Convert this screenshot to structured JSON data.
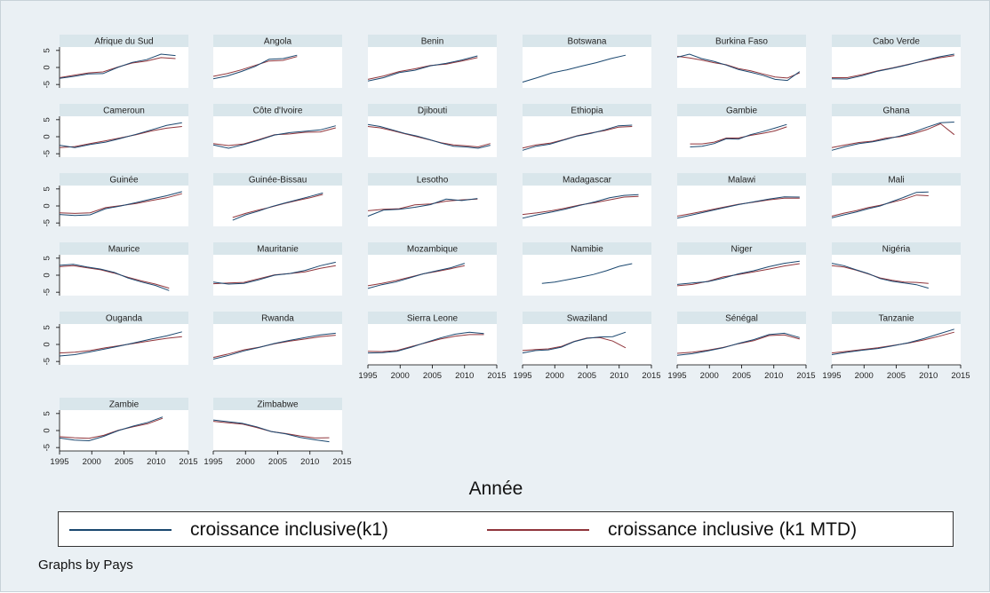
{
  "chart_data": {
    "type": "line",
    "layout": "small-multiples",
    "xlabel": "Année",
    "x_ticks": [
      1995,
      2000,
      2005,
      2010,
      2015
    ],
    "y_ticks": [
      5,
      0,
      -5
    ],
    "xlim": [
      1995,
      2015
    ],
    "ylim": [
      -6,
      6
    ],
    "series_names": [
      "croissance inclusive(k1)",
      "croissance inclusive (k1 MTD)"
    ],
    "series_colors": [
      "#1a476f",
      "#90353b"
    ],
    "panels": [
      {
        "title": "Afrique du Sud",
        "years": [
          1995,
          2013
        ],
        "k1": [
          -3.2,
          -2.6,
          -1.9,
          -1.8,
          0.0,
          1.5,
          2.3,
          3.9,
          3.5
        ],
        "mtd": [
          -3.0,
          -2.3,
          -1.6,
          -1.3,
          0.1,
          1.3,
          1.9,
          2.9,
          2.6
        ]
      },
      {
        "title": "Angola",
        "years": [
          1995,
          2008
        ],
        "k1": [
          -3.3,
          -2.5,
          -1.2,
          0.3,
          2.4,
          2.6,
          3.6
        ],
        "mtd": [
          -2.6,
          -1.8,
          -0.7,
          0.6,
          1.9,
          2.1,
          3.2
        ]
      },
      {
        "title": "Benin",
        "years": [
          1995,
          2012
        ],
        "k1": [
          -4.0,
          -3.0,
          -1.5,
          -0.8,
          0.5,
          1.2,
          2.2,
          3.4
        ],
        "mtd": [
          -3.5,
          -2.5,
          -1.2,
          -0.4,
          0.6,
          1.0,
          1.9,
          2.9
        ]
      },
      {
        "title": "Botswana",
        "years": [
          1995,
          2011
        ],
        "k1": [
          -4.3,
          -3.0,
          -1.6,
          -0.7,
          0.4,
          1.4,
          2.6,
          3.6
        ],
        "mtd": []
      },
      {
        "title": "Burkina Faso",
        "years": [
          1995,
          2014
        ],
        "k1": [
          3.0,
          3.9,
          2.6,
          1.8,
          0.7,
          -0.6,
          -1.4,
          -2.3,
          -3.5,
          -3.8,
          -1.2
        ],
        "mtd": [
          3.3,
          2.8,
          2.2,
          1.4,
          0.8,
          -0.3,
          -1.0,
          -1.9,
          -2.8,
          -3.1,
          -1.6
        ]
      },
      {
        "title": "Cabo Verde",
        "years": [
          1995,
          2014
        ],
        "k1": [
          -3.3,
          -3.4,
          -2.4,
          -1.1,
          -0.2,
          0.8,
          2.0,
          3.1,
          3.9
        ],
        "mtd": [
          -3.0,
          -3.0,
          -2.1,
          -1.0,
          -0.1,
          0.9,
          1.9,
          2.8,
          3.5
        ]
      },
      {
        "title": "Cameroun",
        "years": [
          1995,
          2014
        ],
        "k1": [
          -2.5,
          -3.2,
          -2.3,
          -1.6,
          -0.5,
          0.7,
          2.0,
          3.3,
          4.1
        ],
        "mtd": [
          -3.2,
          -2.9,
          -2.0,
          -1.2,
          -0.3,
          0.6,
          1.7,
          2.5,
          3.0
        ]
      },
      {
        "title": "Côte d'Ivoire",
        "years": [
          1995,
          2014
        ],
        "k1": [
          -2.4,
          -3.4,
          -2.3,
          -1.0,
          0.5,
          1.2,
          1.6,
          2.0,
          3.2
        ],
        "mtd": [
          -2.0,
          -2.6,
          -2.1,
          -0.8,
          0.6,
          0.8,
          1.3,
          1.4,
          2.6
        ]
      },
      {
        "title": "Djibouti",
        "years": [
          1995,
          2014
        ],
        "k1": [
          3.6,
          3.0,
          2.0,
          1.0,
          0.2,
          -0.8,
          -1.9,
          -2.8,
          -3.0,
          -3.4,
          -2.5
        ],
        "mtd": [
          3.0,
          2.6,
          1.8,
          0.9,
          0.0,
          -0.9,
          -1.8,
          -2.4,
          -2.7,
          -3.0,
          -2.0
        ]
      },
      {
        "title": "Ethiopia",
        "years": [
          1995,
          2012
        ],
        "k1": [
          -4.0,
          -2.8,
          -2.2,
          -1.0,
          0.2,
          1.0,
          2.0,
          3.2,
          3.4
        ],
        "mtd": [
          -3.3,
          -2.4,
          -1.9,
          -0.9,
          0.3,
          1.1,
          1.8,
          2.8,
          3.0
        ]
      },
      {
        "title": "Gambie",
        "years": [
          1997,
          2012
        ],
        "k1": [
          -3.0,
          -2.8,
          -2.0,
          -0.6,
          -0.7,
          0.6,
          1.5,
          2.5,
          3.6
        ],
        "mtd": [
          -2.1,
          -2.1,
          -1.6,
          -0.4,
          -0.4,
          0.4,
          1.0,
          1.7,
          2.9
        ]
      },
      {
        "title": "Ghana",
        "years": [
          1995,
          2014
        ],
        "k1": [
          -4.0,
          -2.9,
          -2.0,
          -1.5,
          -0.7,
          0.2,
          1.3,
          2.8,
          4.1,
          4.3
        ],
        "mtd": [
          -3.2,
          -2.4,
          -1.7,
          -1.3,
          -0.4,
          0.0,
          0.9,
          2.1,
          3.8,
          0.6
        ]
      },
      {
        "title": "Guinée",
        "years": [
          1995,
          2014
        ],
        "k1": [
          -2.5,
          -2.8,
          -2.6,
          -0.8,
          0.0,
          1.0,
          2.0,
          3.0,
          4.2
        ],
        "mtd": [
          -2.0,
          -2.2,
          -2.0,
          -0.5,
          0.1,
          0.7,
          1.6,
          2.4,
          3.6
        ]
      },
      {
        "title": "Guinée-Bissau",
        "years": [
          1998,
          2012
        ],
        "k1": [
          -4.2,
          -2.6,
          -1.5,
          -0.2,
          0.8,
          1.8,
          2.8,
          3.8
        ],
        "mtd": [
          -3.4,
          -2.2,
          -1.2,
          -0.3,
          0.7,
          1.6,
          2.4,
          3.4
        ]
      },
      {
        "title": "Lesotho",
        "years": [
          1995,
          2012
        ],
        "k1": [
          -3.0,
          -1.2,
          -1.0,
          -0.4,
          0.4,
          2.0,
          1.6,
          2.2
        ],
        "mtd": [
          -1.4,
          -1.0,
          -0.8,
          0.3,
          0.6,
          1.4,
          1.8,
          2.0
        ]
      },
      {
        "title": "Madagascar",
        "years": [
          1995,
          2013
        ],
        "k1": [
          -3.6,
          -2.6,
          -1.8,
          -0.9,
          0.2,
          1.2,
          2.4,
          3.1,
          3.3
        ],
        "mtd": [
          -2.5,
          -2.0,
          -1.4,
          -0.6,
          0.3,
          1.0,
          1.8,
          2.6,
          2.8
        ]
      },
      {
        "title": "Malawi",
        "years": [
          1995,
          2014
        ],
        "k1": [
          -3.6,
          -2.6,
          -1.6,
          -0.6,
          0.4,
          1.2,
          2.0,
          2.7,
          2.6
        ],
        "mtd": [
          -3.0,
          -2.2,
          -1.3,
          -0.4,
          0.5,
          1.1,
          1.8,
          2.3,
          2.3
        ]
      },
      {
        "title": "Mali",
        "years": [
          1995,
          2010
        ],
        "k1": [
          -3.5,
          -2.6,
          -1.8,
          -0.8,
          0.0,
          1.3,
          2.6,
          4.0,
          4.1
        ],
        "mtd": [
          -3.0,
          -2.1,
          -1.4,
          -0.5,
          0.2,
          1.1,
          2.0,
          3.2,
          3.0
        ]
      },
      {
        "title": "Maurice",
        "years": [
          1995,
          2012
        ],
        "k1": [
          2.9,
          3.2,
          2.4,
          1.8,
          0.8,
          -0.8,
          -2.0,
          -3.0,
          -4.5
        ],
        "mtd": [
          2.5,
          2.8,
          2.2,
          1.6,
          0.6,
          -0.6,
          -1.7,
          -2.6,
          -3.8
        ]
      },
      {
        "title": "Mauritanie",
        "years": [
          1995,
          2014
        ],
        "k1": [
          -2.0,
          -2.6,
          -2.4,
          -1.3,
          0.0,
          0.5,
          1.4,
          2.8,
          3.8
        ],
        "mtd": [
          -2.5,
          -2.3,
          -2.1,
          -1.0,
          0.1,
          0.5,
          1.0,
          2.0,
          2.8
        ]
      },
      {
        "title": "Mozambique",
        "years": [
          1995,
          2010
        ],
        "k1": [
          -3.9,
          -2.8,
          -2.0,
          -0.8,
          0.4,
          1.3,
          2.2,
          3.5
        ],
        "mtd": [
          -3.1,
          -2.4,
          -1.6,
          -0.6,
          0.4,
          1.1,
          1.9,
          2.8
        ]
      },
      {
        "title": "Namibie",
        "years": [
          1998,
          2012
        ],
        "k1": [
          -2.4,
          -2.0,
          -1.3,
          -0.6,
          0.2,
          1.3,
          2.6,
          3.4
        ],
        "mtd": []
      },
      {
        "title": "Niger",
        "years": [
          1995,
          2014
        ],
        "k1": [
          -2.7,
          -2.3,
          -1.9,
          -0.9,
          0.4,
          1.3,
          2.5,
          3.5,
          4.1
        ],
        "mtd": [
          -3.1,
          -2.7,
          -1.8,
          -0.5,
          0.2,
          1.0,
          1.8,
          2.7,
          3.4
        ]
      },
      {
        "title": "Nigéria",
        "years": [
          1995,
          2010
        ],
        "k1": [
          3.5,
          2.8,
          1.6,
          0.5,
          -1.0,
          -1.8,
          -2.3,
          -2.8,
          -3.8
        ],
        "mtd": [
          2.8,
          2.4,
          1.5,
          0.4,
          -0.8,
          -1.5,
          -2.0,
          -2.1,
          -2.4
        ]
      },
      {
        "title": "Ouganda",
        "years": [
          1995,
          2014
        ],
        "k1": [
          -3.4,
          -3.0,
          -2.2,
          -1.3,
          -0.4,
          0.6,
          1.6,
          2.5,
          3.7
        ],
        "mtd": [
          -2.5,
          -2.3,
          -1.8,
          -1.0,
          -0.3,
          0.4,
          1.1,
          1.8,
          2.3
        ]
      },
      {
        "title": "Rwanda",
        "years": [
          1995,
          2014
        ],
        "k1": [
          -4.3,
          -3.2,
          -1.9,
          -0.9,
          0.3,
          1.2,
          2.0,
          2.8,
          3.3
        ],
        "mtd": [
          -3.8,
          -2.8,
          -1.6,
          -0.8,
          0.2,
          1.0,
          1.6,
          2.3,
          2.7
        ]
      },
      {
        "title": "Sierra Leone",
        "years": [
          1995,
          2013
        ],
        "k1": [
          -2.5,
          -2.4,
          -2.0,
          -0.8,
          0.6,
          1.9,
          3.0,
          3.6,
          3.2
        ],
        "mtd": [
          -2.0,
          -2.1,
          -1.8,
          -0.6,
          0.5,
          1.6,
          2.4,
          2.9,
          2.9
        ]
      },
      {
        "title": "Swaziland",
        "years": [
          1995,
          2011
        ],
        "k1": [
          -2.5,
          -1.8,
          -1.6,
          -0.8,
          0.8,
          1.8,
          2.2,
          2.3,
          3.6
        ],
        "mtd": [
          -1.8,
          -1.5,
          -1.3,
          -0.6,
          0.9,
          1.9,
          2.0,
          1.0,
          -1.0
        ]
      },
      {
        "title": "Sénégal",
        "years": [
          1995,
          2014
        ],
        "k1": [
          -3.2,
          -2.7,
          -1.9,
          -1.0,
          0.3,
          1.4,
          2.9,
          3.3,
          2.0
        ],
        "mtd": [
          -2.6,
          -2.3,
          -1.7,
          -0.9,
          0.2,
          1.1,
          2.6,
          2.8,
          1.6
        ]
      },
      {
        "title": "Tanzanie",
        "years": [
          1995,
          2014
        ],
        "k1": [
          -3.0,
          -2.3,
          -1.7,
          -1.2,
          -0.4,
          0.5,
          1.7,
          3.1,
          4.5
        ],
        "mtd": [
          -2.5,
          -2.0,
          -1.5,
          -1.0,
          -0.3,
          0.4,
          1.3,
          2.4,
          3.6
        ]
      },
      {
        "title": "Zambie",
        "years": [
          1995,
          2011
        ],
        "k1": [
          -2.2,
          -2.8,
          -3.0,
          -1.7,
          0.0,
          1.3,
          2.4,
          4.0
        ],
        "mtd": [
          -1.8,
          -2.1,
          -2.3,
          -1.4,
          0.1,
          1.1,
          2.0,
          3.6
        ]
      },
      {
        "title": "Zimbabwe",
        "years": [
          1995,
          2013
        ],
        "k1": [
          3.1,
          2.6,
          2.1,
          1.1,
          -0.3,
          -1.0,
          -2.0,
          -2.7,
          -3.3
        ],
        "mtd": [
          2.7,
          2.3,
          1.9,
          0.9,
          -0.3,
          -0.9,
          -1.6,
          -2.2,
          -2.1
        ]
      }
    ]
  },
  "axis_title": "Année",
  "legend": {
    "items": [
      {
        "label": "croissance inclusive(k1)",
        "color": "#1a476f"
      },
      {
        "label": "croissance inclusive (k1 MTD)",
        "color": "#90353b"
      }
    ]
  },
  "footnote": "Graphs by Pays"
}
